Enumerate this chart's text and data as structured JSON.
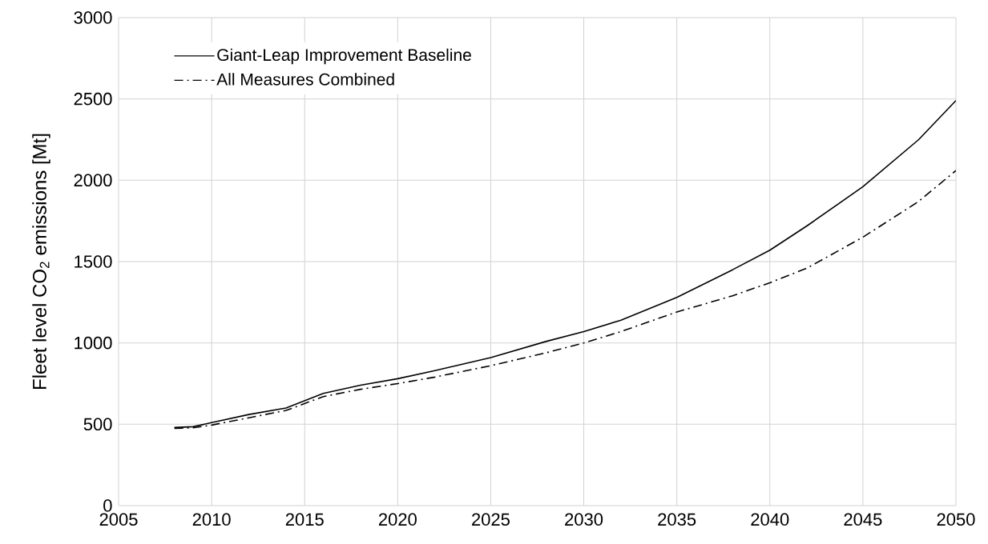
{
  "chart_data": {
    "type": "line",
    "ylabel": "Fleet level CO$_{2}$ emissions [Mt]",
    "xlim": [
      2005,
      2050
    ],
    "xticks": [
      2005,
      2010,
      2015,
      2020,
      2025,
      2030,
      2035,
      2040,
      2045,
      2050
    ],
    "ylim": [
      0,
      3000
    ],
    "yticks": [
      0,
      500,
      1000,
      1500,
      2000,
      2500,
      3000
    ],
    "grid": true,
    "legend": "top left",
    "series": [
      {
        "name": "Giant-Leap Improvement Baseline",
        "color": "#000000",
        "line_style": "solid",
        "x": [
          2008,
          2009,
          2010,
          2012,
          2014,
          2016,
          2018,
          2020,
          2022,
          2025,
          2028,
          2030,
          2032,
          2035,
          2038,
          2040,
          2042,
          2045,
          2048,
          2050
        ],
        "values": [
          480,
          485,
          510,
          560,
          600,
          690,
          740,
          780,
          830,
          910,
          1010,
          1070,
          1140,
          1280,
          1450,
          1570,
          1720,
          1960,
          2250,
          2490
        ]
      },
      {
        "name": "All Measures Combined",
        "color": "#000000",
        "line_style": "dashdot",
        "x": [
          2008,
          2009,
          2010,
          2012,
          2014,
          2016,
          2018,
          2020,
          2022,
          2025,
          2028,
          2030,
          2032,
          2035,
          2038,
          2040,
          2042,
          2045,
          2048,
          2050
        ],
        "values": [
          475,
          478,
          495,
          540,
          585,
          670,
          715,
          750,
          790,
          860,
          940,
          1000,
          1070,
          1190,
          1290,
          1370,
          1460,
          1650,
          1870,
          2060
        ]
      }
    ]
  }
}
